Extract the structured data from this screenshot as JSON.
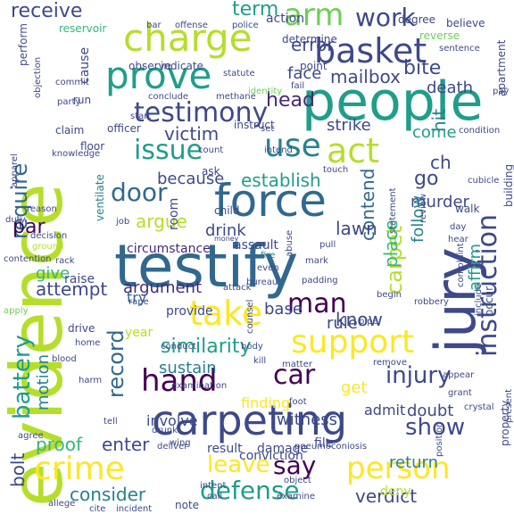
{
  "palette": {
    "dark_purple": "#440154",
    "deep_purple": "#482878",
    "indigo": "#3e4989",
    "blue": "#31688e",
    "teal": "#26828e",
    "sea_green": "#1f9e89",
    "green": "#35b779",
    "light_green": "#6ece58",
    "yellow_green": "#b5de2b",
    "yellow": "#fde725"
  },
  "words": [
    {
      "text": "evidence"
    },
    {
      "text": "testify"
    },
    {
      "text": "people"
    },
    {
      "text": "jury"
    },
    {
      "text": "force"
    },
    {
      "text": "carpeting"
    },
    {
      "text": "charge"
    },
    {
      "text": "prove"
    },
    {
      "text": "basket"
    },
    {
      "text": "take"
    },
    {
      "text": "support"
    },
    {
      "text": "person"
    },
    {
      "text": "crime"
    },
    {
      "text": "hand"
    },
    {
      "text": "use"
    },
    {
      "text": "act"
    },
    {
      "text": "testimony"
    },
    {
      "text": "instruction"
    },
    {
      "text": "issue"
    },
    {
      "text": "arm"
    },
    {
      "text": "man"
    },
    {
      "text": "car"
    },
    {
      "text": "defense"
    },
    {
      "text": "injury"
    },
    {
      "text": "say"
    },
    {
      "text": "leave"
    },
    {
      "text": "work"
    },
    {
      "text": "battery"
    },
    {
      "text": "record"
    },
    {
      "text": "similarity"
    },
    {
      "text": "door"
    },
    {
      "text": "show"
    },
    {
      "text": "carpet"
    },
    {
      "text": "require"
    },
    {
      "text": "mailbox"
    },
    {
      "text": "establish"
    },
    {
      "text": "consider"
    },
    {
      "text": "verdict"
    },
    {
      "text": "bolt"
    },
    {
      "text": "head"
    },
    {
      "text": "receive"
    },
    {
      "text": "victim"
    },
    {
      "text": "because"
    },
    {
      "text": "contend"
    },
    {
      "text": "argument"
    },
    {
      "text": "argue"
    },
    {
      "text": "error"
    },
    {
      "text": "term"
    },
    {
      "text": "bite"
    },
    {
      "text": "enter"
    },
    {
      "text": "proof"
    },
    {
      "text": "par"
    },
    {
      "text": "attempt"
    },
    {
      "text": "strike"
    },
    {
      "text": "drink"
    },
    {
      "text": "know"
    },
    {
      "text": "place"
    },
    {
      "text": "motion"
    },
    {
      "text": "witness"
    },
    {
      "text": "return"
    },
    {
      "text": "rule"
    },
    {
      "text": "doubt"
    },
    {
      "text": "murder"
    },
    {
      "text": "death"
    },
    {
      "text": "lawn"
    },
    {
      "text": "go"
    },
    {
      "text": "hit"
    },
    {
      "text": "ch"
    },
    {
      "text": "face"
    },
    {
      "text": "sustain"
    },
    {
      "text": "come"
    },
    {
      "text": "base"
    },
    {
      "text": "affirm"
    },
    {
      "text": "give"
    },
    {
      "text": "action"
    },
    {
      "text": "cause"
    },
    {
      "text": "circumstance"
    },
    {
      "text": "finding"
    },
    {
      "text": "involve"
    },
    {
      "text": "get"
    },
    {
      "text": "admit"
    },
    {
      "text": "follow"
    },
    {
      "text": "room"
    },
    {
      "text": "try"
    },
    {
      "text": "raise"
    },
    {
      "text": "conviction"
    },
    {
      "text": "assault"
    },
    {
      "text": "result"
    },
    {
      "text": "damage"
    },
    {
      "text": "year"
    },
    {
      "text": "provide"
    },
    {
      "text": "file"
    },
    {
      "text": "deny"
    },
    {
      "text": "degree"
    },
    {
      "text": "reservoir"
    },
    {
      "text": "observe"
    },
    {
      "text": "indicate"
    },
    {
      "text": "determine"
    },
    {
      "text": "reverse"
    },
    {
      "text": "point"
    },
    {
      "text": "apartment"
    },
    {
      "text": "believe"
    },
    {
      "text": "perform"
    },
    {
      "text": "police"
    },
    {
      "text": "offense"
    },
    {
      "text": "bar"
    },
    {
      "text": "sentence"
    },
    {
      "text": "statute"
    },
    {
      "text": "objection"
    },
    {
      "text": "commit"
    },
    {
      "text": "conclude"
    },
    {
      "text": "methane"
    },
    {
      "text": "identity"
    },
    {
      "text": "fail"
    },
    {
      "text": "pay"
    },
    {
      "text": "party"
    },
    {
      "text": "run"
    },
    {
      "text": "claim"
    },
    {
      "text": "officer"
    },
    {
      "text": "start"
    },
    {
      "text": "instruct"
    },
    {
      "text": "condition"
    },
    {
      "text": "set"
    },
    {
      "text": "appear"
    },
    {
      "text": "floor"
    },
    {
      "text": "count"
    },
    {
      "text": "intend"
    },
    {
      "text": "knowledge"
    },
    {
      "text": "ask"
    },
    {
      "text": "touch"
    },
    {
      "text": "cubicle"
    },
    {
      "text": "building"
    },
    {
      "text": "ventilate"
    },
    {
      "text": "job"
    },
    {
      "text": "child"
    },
    {
      "text": "reason"
    },
    {
      "text": "apparel"
    },
    {
      "text": "duty"
    },
    {
      "text": "decision"
    },
    {
      "text": "review"
    },
    {
      "text": "statement"
    },
    {
      "text": "walk"
    },
    {
      "text": "day"
    },
    {
      "text": "hear"
    },
    {
      "text": "money"
    },
    {
      "text": "pull"
    },
    {
      "text": "abuse"
    },
    {
      "text": "even"
    },
    {
      "text": "fire"
    },
    {
      "text": "ground"
    },
    {
      "text": "rack"
    },
    {
      "text": "contention"
    },
    {
      "text": "mark"
    },
    {
      "text": "bureau"
    },
    {
      "text": "attack"
    },
    {
      "text": "complaint"
    },
    {
      "text": "begin"
    },
    {
      "text": "robbery"
    },
    {
      "text": "apply"
    },
    {
      "text": "rape"
    },
    {
      "text": "padding"
    },
    {
      "text": "pipe"
    },
    {
      "text": "occur"
    },
    {
      "text": "include"
    },
    {
      "text": "drive"
    },
    {
      "text": "home"
    },
    {
      "text": "conduct"
    },
    {
      "text": "counsel"
    },
    {
      "text": "kill"
    },
    {
      "text": "matter"
    },
    {
      "text": "blood"
    },
    {
      "text": "body"
    },
    {
      "text": "remove"
    },
    {
      "text": "harm"
    },
    {
      "text": "grant"
    },
    {
      "text": "present"
    },
    {
      "text": "crystal"
    },
    {
      "text": "examination"
    },
    {
      "text": "foot"
    },
    {
      "text": "agree"
    },
    {
      "text": "tell"
    },
    {
      "text": "drunk"
    },
    {
      "text": "deliver"
    },
    {
      "text": "wing"
    },
    {
      "text": "position"
    },
    {
      "text": "property"
    },
    {
      "text": "pneumoconiosis"
    },
    {
      "text": "object"
    },
    {
      "text": "intent"
    },
    {
      "text": "call"
    },
    {
      "text": "note"
    },
    {
      "text": "allege"
    },
    {
      "text": "cite"
    },
    {
      "text": "incident"
    },
    {
      "text": "examine"
    }
  ]
}
